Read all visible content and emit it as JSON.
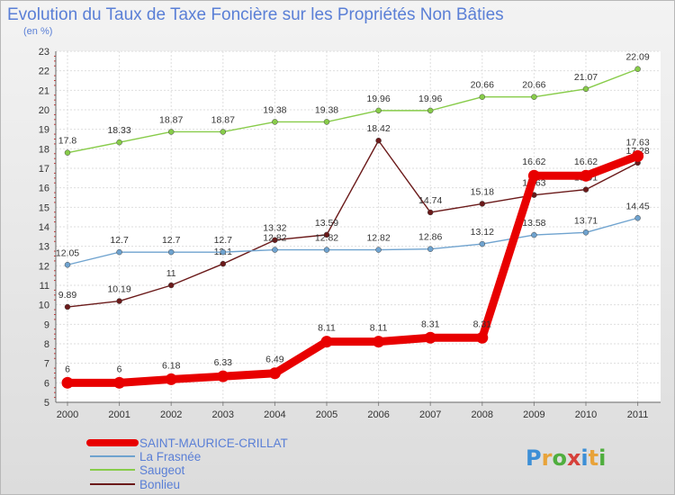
{
  "chart_data": {
    "type": "line",
    "title": "Evolution du Taux de Taxe Foncière sur les Propriétés Non Bâties",
    "subtitle": "(en %)",
    "xlabel": "",
    "ylabel": "",
    "x": [
      "2000",
      "2001",
      "2002",
      "2003",
      "2004",
      "2005",
      "2006",
      "2007",
      "2008",
      "2009",
      "2010",
      "2011"
    ],
    "ylim": [
      5,
      23
    ],
    "yticks": [
      "5",
      "6",
      "7",
      "8",
      "9",
      "10",
      "11",
      "12",
      "13",
      "14",
      "15",
      "16",
      "17",
      "18",
      "19",
      "20",
      "21",
      "22",
      "23"
    ],
    "grid": true,
    "legend_position": "bottom-left",
    "series": [
      {
        "name": "SAINT-MAURICE-CRILLAT",
        "color": "#e80000",
        "values": [
          6,
          6,
          6.18,
          6.33,
          6.49,
          8.11,
          8.11,
          8.31,
          8.31,
          16.62,
          16.62,
          17.63
        ],
        "labels": [
          "6",
          "6",
          "6.18",
          "6.33",
          "6.49",
          "8.11",
          "8.11",
          "8.31",
          "8.31",
          "16.62",
          "16.62",
          "17.63"
        ]
      },
      {
        "name": "La Frasnée",
        "color": "#6fa3cf",
        "values": [
          12.05,
          12.7,
          12.7,
          12.7,
          12.82,
          12.82,
          12.82,
          12.86,
          13.12,
          13.58,
          13.71,
          14.45
        ],
        "labels": [
          "12.05",
          "12.7",
          "12.7",
          "12.7",
          "12.82",
          "12.82",
          "12.82",
          "12.86",
          "13.12",
          "13.58",
          "13.71",
          "14.45"
        ]
      },
      {
        "name": "Saugeot",
        "color": "#88cc4a",
        "values": [
          17.8,
          18.33,
          18.87,
          18.87,
          19.38,
          19.38,
          19.96,
          19.96,
          20.66,
          20.66,
          21.07,
          22.09
        ],
        "labels": [
          "17.8",
          "18.33",
          "18.87",
          "18.87",
          "19.38",
          "19.38",
          "19.96",
          "19.96",
          "20.66",
          "20.66",
          "21.07",
          "22.09"
        ]
      },
      {
        "name": "Bonlieu",
        "color": "#6b1a1a",
        "values": [
          9.89,
          10.19,
          11,
          12.1,
          13.32,
          13.59,
          18.42,
          14.74,
          15.18,
          15.63,
          15.91,
          17.28
        ],
        "labels": [
          "9.89",
          "10.19",
          "11",
          "12.1",
          "13.32",
          "13.59",
          "18.42",
          "14.74",
          "15.18",
          "15.63",
          "15.91",
          "17.28"
        ]
      }
    ]
  },
  "logo": {
    "text": "Proxiti",
    "letter_colors": [
      "#3d8fd6",
      "#e8a33a",
      "#4fae3e",
      "#d6403a",
      "#3d8fd6",
      "#e8a33a",
      "#4fae3e"
    ]
  }
}
